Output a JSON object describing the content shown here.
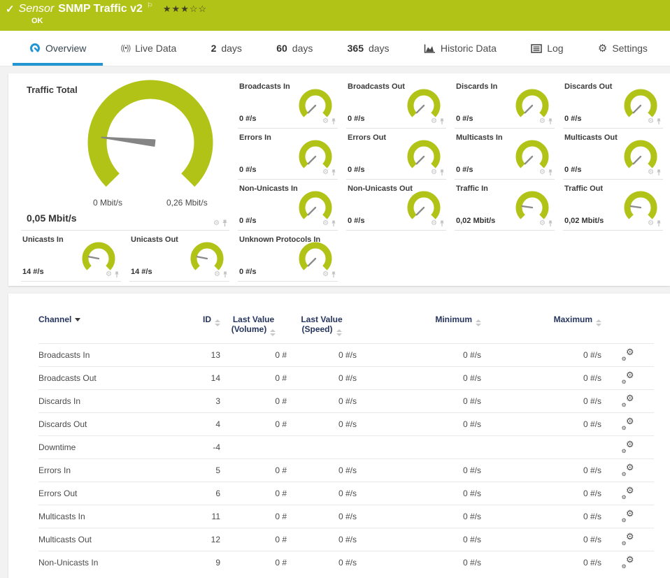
{
  "colors": {
    "brand_green": "#b2c318",
    "accent_blue": "#2196d3",
    "header_navy": "#26355f",
    "needle_gray": "#8a8a8a"
  },
  "header": {
    "status_icon": "✓",
    "kind_label": "Sensor",
    "title": "SNMP Traffic v2",
    "flag_icon": "⚐",
    "stars": "★★★☆☆",
    "status": "OK"
  },
  "tabs": [
    {
      "label": "Overview",
      "icon": "gauge-icon",
      "active": true
    },
    {
      "label": "Live Data",
      "icon": "live-data-icon",
      "icon_glyph": "((•))"
    },
    {
      "num": "2",
      "label": "days"
    },
    {
      "num": "60",
      "label": "days"
    },
    {
      "num": "365",
      "label": "days"
    },
    {
      "label": "Historic Data",
      "icon": "historic-data-icon"
    },
    {
      "label": "Log",
      "icon": "log-icon"
    },
    {
      "label": "Settings",
      "icon": "gear-icon",
      "icon_glyph": "⚙"
    }
  ],
  "gauges": {
    "primary": {
      "title": "Traffic Total",
      "value": "0,05 Mbit/s",
      "min_label": "0 Mbit/s",
      "max_label": "0,26 Mbit/s",
      "needle_deg": 186
    },
    "small": [
      {
        "title": "Broadcasts In",
        "value": "0 #/s",
        "needle_deg": 135,
        "row": 1,
        "col": 3
      },
      {
        "title": "Broadcasts Out",
        "value": "0 #/s",
        "needle_deg": 135,
        "row": 1,
        "col": 4
      },
      {
        "title": "Discards In",
        "value": "0 #/s",
        "needle_deg": 135,
        "row": 1,
        "col": 5
      },
      {
        "title": "Discards Out",
        "value": "0 #/s",
        "needle_deg": 135,
        "row": 1,
        "col": 6
      },
      {
        "title": "Errors In",
        "value": "0 #/s",
        "needle_deg": 135,
        "row": 2,
        "col": 3
      },
      {
        "title": "Errors Out",
        "value": "0 #/s",
        "needle_deg": 135,
        "row": 2,
        "col": 4
      },
      {
        "title": "Multicasts In",
        "value": "0 #/s",
        "needle_deg": 135,
        "row": 2,
        "col": 5
      },
      {
        "title": "Multicasts Out",
        "value": "0 #/s",
        "needle_deg": 135,
        "row": 2,
        "col": 6
      },
      {
        "title": "Non-Unicasts In",
        "value": "0 #/s",
        "needle_deg": 135,
        "row": 3,
        "col": 3
      },
      {
        "title": "Non-Unicasts Out",
        "value": "0 #/s",
        "needle_deg": 135,
        "row": 3,
        "col": 4
      },
      {
        "title": "Traffic In",
        "value": "0,02 Mbit/s",
        "needle_deg": 188,
        "row": 3,
        "col": 5
      },
      {
        "title": "Traffic Out",
        "value": "0,02 Mbit/s",
        "needle_deg": 188,
        "row": 3,
        "col": 6
      },
      {
        "title": "Unicasts In",
        "value": "14 #/s",
        "needle_deg": 191,
        "row": 4,
        "col": 1
      },
      {
        "title": "Unicasts Out",
        "value": "14 #/s",
        "needle_deg": 191,
        "row": 4,
        "col": 2
      },
      {
        "title": "Unknown Protocols In",
        "value": "0 #/s",
        "needle_deg": 135,
        "row": 4,
        "col": 3
      }
    ]
  },
  "table": {
    "columns": {
      "channel": "Channel",
      "id": "ID",
      "vol": "Last Value (Volume)",
      "speed": "Last Value (Speed)",
      "min": "Minimum",
      "max": "Maximum"
    },
    "rows": [
      {
        "channel": "Broadcasts In",
        "id": "13",
        "vol": "0 #",
        "speed": "0 #/s",
        "min": "0 #/s",
        "max": "0 #/s"
      },
      {
        "channel": "Broadcasts Out",
        "id": "14",
        "vol": "0 #",
        "speed": "0 #/s",
        "min": "0 #/s",
        "max": "0 #/s"
      },
      {
        "channel": "Discards In",
        "id": "3",
        "vol": "0 #",
        "speed": "0 #/s",
        "min": "0 #/s",
        "max": "0 #/s"
      },
      {
        "channel": "Discards Out",
        "id": "4",
        "vol": "0 #",
        "speed": "0 #/s",
        "min": "0 #/s",
        "max": "0 #/s"
      },
      {
        "channel": "Downtime",
        "id": "-4",
        "vol": "",
        "speed": "",
        "min": "",
        "max": ""
      },
      {
        "channel": "Errors In",
        "id": "5",
        "vol": "0 #",
        "speed": "0 #/s",
        "min": "0 #/s",
        "max": "0 #/s"
      },
      {
        "channel": "Errors Out",
        "id": "6",
        "vol": "0 #",
        "speed": "0 #/s",
        "min": "0 #/s",
        "max": "0 #/s"
      },
      {
        "channel": "Multicasts In",
        "id": "11",
        "vol": "0 #",
        "speed": "0 #/s",
        "min": "0 #/s",
        "max": "0 #/s"
      },
      {
        "channel": "Multicasts Out",
        "id": "12",
        "vol": "0 #",
        "speed": "0 #/s",
        "min": "0 #/s",
        "max": "0 #/s"
      },
      {
        "channel": "Non-Unicasts In",
        "id": "9",
        "vol": "0 #",
        "speed": "0 #/s",
        "min": "0 #/s",
        "max": "0 #/s"
      }
    ]
  }
}
